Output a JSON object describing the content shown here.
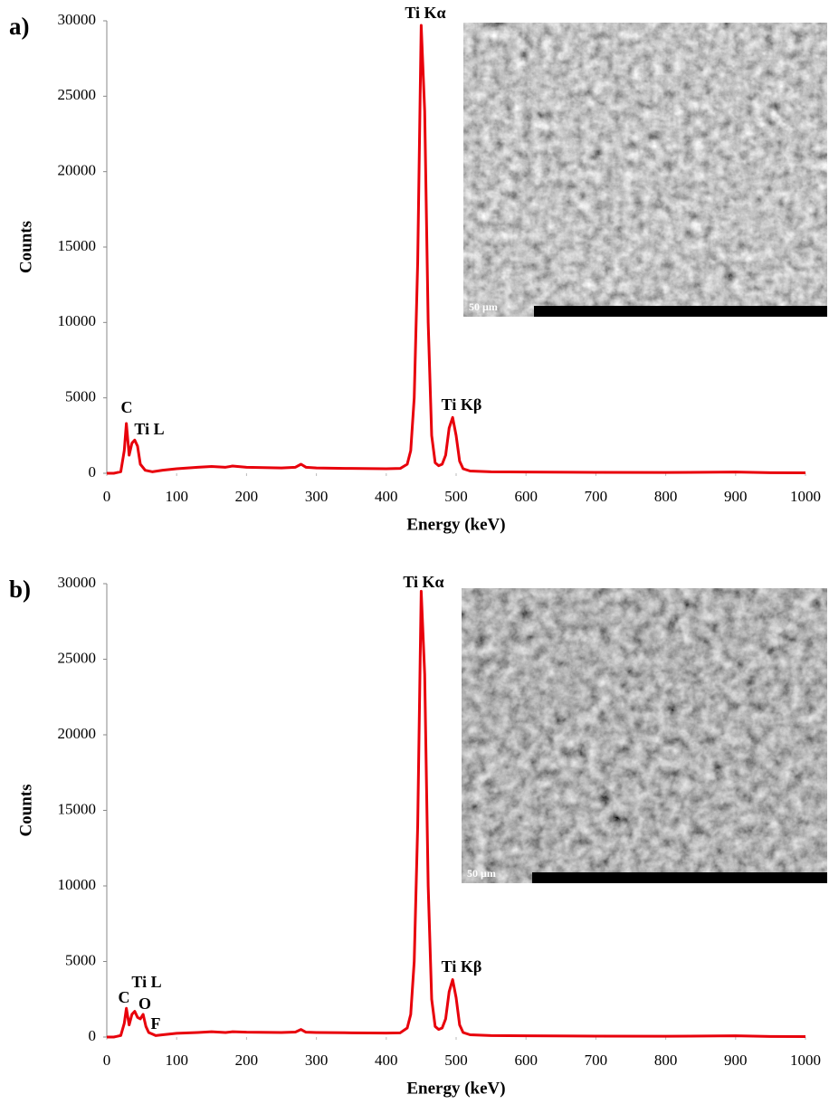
{
  "chart_data": [
    {
      "type": "line",
      "panel_label": "a)",
      "x_label": "Energy (keV)",
      "y_label": "Counts",
      "x": [
        0,
        10,
        20,
        25,
        28,
        32,
        36,
        40,
        44,
        48,
        55,
        65,
        80,
        100,
        130,
        150,
        170,
        180,
        200,
        250,
        270,
        278,
        285,
        300,
        350,
        400,
        420,
        430,
        435,
        440,
        445,
        450,
        455,
        460,
        465,
        470,
        475,
        480,
        485,
        490,
        495,
        500,
        505,
        510,
        520,
        550,
        600,
        700,
        800,
        900,
        950,
        1000
      ],
      "series": [
        {
          "color": "#e8000b",
          "values": [
            0,
            0,
            100,
            1500,
            3300,
            1200,
            2000,
            2200,
            1800,
            600,
            200,
            100,
            200,
            300,
            400,
            450,
            400,
            480,
            400,
            350,
            400,
            600,
            400,
            350,
            320,
            300,
            320,
            600,
            1500,
            5000,
            14000,
            29700,
            24000,
            10000,
            2500,
            700,
            500,
            600,
            1200,
            3000,
            3700,
            2500,
            800,
            300,
            150,
            100,
            80,
            60,
            50,
            80,
            40,
            30
          ]
        }
      ],
      "xlim": [
        0,
        1000
      ],
      "xticks": [
        0,
        100,
        200,
        300,
        400,
        500,
        600,
        700,
        800,
        900,
        1000
      ],
      "ylim": [
        0,
        30000
      ],
      "yticks": [
        0,
        5000,
        10000,
        15000,
        20000,
        25000,
        30000
      ],
      "annotations": [
        "Ti Kα",
        "C",
        "Ti L",
        "Ti Kβ"
      ],
      "inset_scale_label": "50 µm"
    },
    {
      "type": "line",
      "panel_label": "b)",
      "x_label": "Energy (keV)",
      "y_label": "Counts",
      "x": [
        0,
        10,
        20,
        25,
        28,
        32,
        36,
        40,
        44,
        48,
        52,
        56,
        60,
        65,
        70,
        80,
        100,
        130,
        150,
        170,
        180,
        200,
        250,
        270,
        278,
        285,
        300,
        350,
        400,
        420,
        430,
        435,
        440,
        445,
        450,
        455,
        460,
        465,
        470,
        475,
        480,
        485,
        490,
        495,
        500,
        505,
        510,
        520,
        550,
        600,
        700,
        800,
        900,
        950,
        1000
      ],
      "series": [
        {
          "color": "#e8000b",
          "values": [
            0,
            0,
            100,
            900,
            1900,
            800,
            1500,
            1700,
            1300,
            1200,
            1500,
            700,
            300,
            200,
            100,
            150,
            250,
            300,
            350,
            300,
            350,
            320,
            300,
            330,
            500,
            320,
            300,
            280,
            260,
            280,
            600,
            1500,
            5000,
            14000,
            29500,
            24000,
            10000,
            2500,
            700,
            500,
            600,
            1200,
            3000,
            3800,
            2600,
            800,
            300,
            150,
            100,
            80,
            60,
            50,
            80,
            40,
            30
          ]
        }
      ],
      "xlim": [
        0,
        1000
      ],
      "xticks": [
        0,
        100,
        200,
        300,
        400,
        500,
        600,
        700,
        800,
        900,
        1000
      ],
      "ylim": [
        0,
        30000
      ],
      "yticks": [
        0,
        5000,
        10000,
        15000,
        20000,
        25000,
        30000
      ],
      "annotations": [
        "Ti Kα",
        "Ti Kβ",
        "Ti L",
        "C",
        "O",
        "F"
      ],
      "inset_scale_label": "50 µm"
    }
  ]
}
